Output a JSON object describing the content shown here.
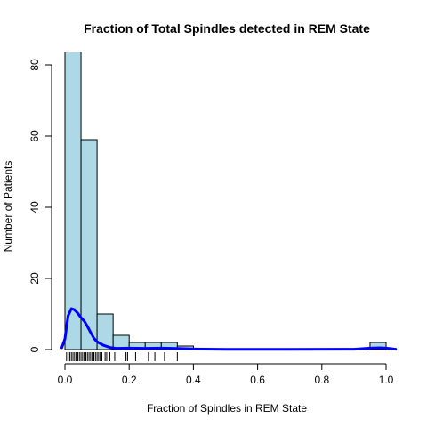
{
  "chart_data": {
    "type": "bar",
    "title": "Fraction of Total Spindles detected in REM State",
    "xlabel": "Fraction of Spindles in REM State",
    "ylabel": "Number of Patients",
    "bin_width": 0.05,
    "bins": [
      {
        "start": 0.0,
        "end": 0.05,
        "count": 90
      },
      {
        "start": 0.05,
        "end": 0.1,
        "count": 59
      },
      {
        "start": 0.1,
        "end": 0.15,
        "count": 10
      },
      {
        "start": 0.15,
        "end": 0.2,
        "count": 4
      },
      {
        "start": 0.2,
        "end": 0.25,
        "count": 2
      },
      {
        "start": 0.25,
        "end": 0.3,
        "count": 2
      },
      {
        "start": 0.3,
        "end": 0.35,
        "count": 2
      },
      {
        "start": 0.35,
        "end": 0.4,
        "count": 1
      },
      {
        "start": 0.95,
        "end": 1.0,
        "count": 2
      }
    ],
    "xlim": [
      0,
      1.0
    ],
    "ylim": [
      0,
      80
    ],
    "xticks": [
      "0.0",
      "0.2",
      "0.4",
      "0.6",
      "0.8",
      "1.0"
    ],
    "yticks": [
      "0",
      "20",
      "40",
      "60",
      "80"
    ],
    "density_curve": {
      "color": "#0000ff",
      "x": [
        -0.01,
        0.0,
        0.005,
        0.01,
        0.02,
        0.03,
        0.04,
        0.05,
        0.06,
        0.07,
        0.08,
        0.09,
        0.1,
        0.12,
        0.14,
        0.16,
        0.2,
        0.25,
        0.3,
        0.35,
        0.4,
        0.5,
        0.7,
        0.9,
        0.95,
        0.98,
        1.0,
        1.03
      ],
      "y": [
        0.5,
        3.0,
        6.5,
        9.5,
        11.5,
        11.2,
        10.2,
        9.0,
        8.0,
        6.5,
        4.8,
        3.2,
        2.2,
        1.2,
        0.6,
        0.35,
        0.4,
        0.35,
        0.4,
        0.3,
        0.15,
        0.05,
        0.05,
        0.1,
        0.4,
        0.5,
        0.4,
        0.1
      ]
    },
    "rug": [
      0.005,
      0.01,
      0.015,
      0.02,
      0.025,
      0.03,
      0.035,
      0.04,
      0.045,
      0.05,
      0.055,
      0.06,
      0.065,
      0.07,
      0.075,
      0.08,
      0.085,
      0.09,
      0.095,
      0.1,
      0.105,
      0.11,
      0.115,
      0.125,
      0.13,
      0.14,
      0.155,
      0.19,
      0.195,
      0.22,
      0.26,
      0.28,
      0.31,
      0.35
    ],
    "bar_color": "#add8e6",
    "grid": false,
    "legend": "none"
  }
}
